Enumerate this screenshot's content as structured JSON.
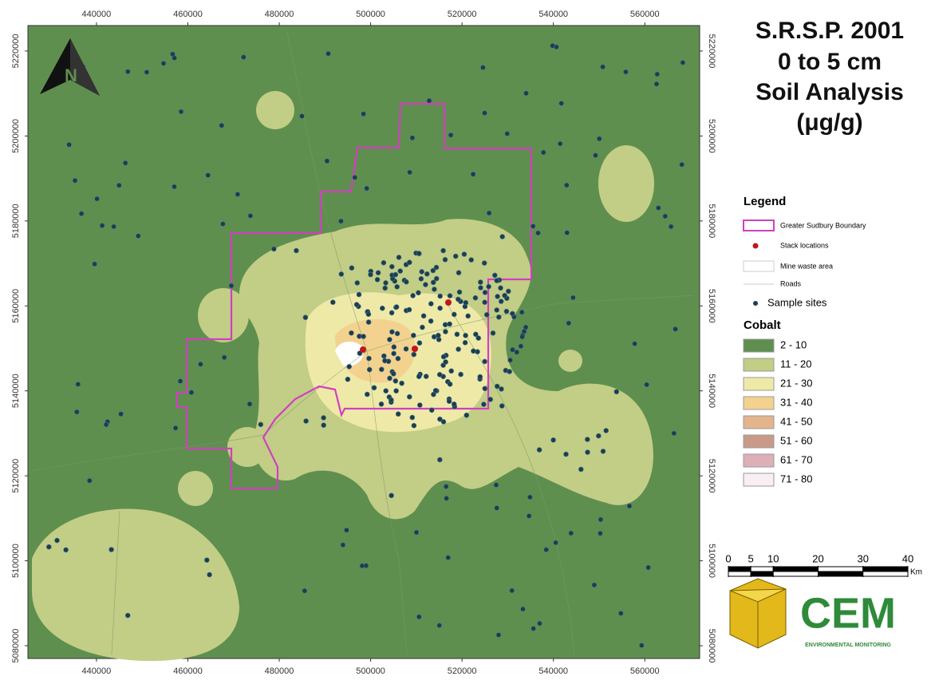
{
  "map": {
    "title": [
      "S.R.S.P. 2001",
      "0 to 5 cm",
      "Soil Analysis",
      "(μg/g)"
    ],
    "north": "N",
    "xlim": [
      425000,
      572000
    ],
    "ylim": [
      5077000,
      5226000
    ],
    "xticks": [
      440000,
      460000,
      480000,
      500000,
      520000,
      540000,
      560000
    ],
    "yticks": [
      5080000,
      5100000,
      5120000,
      5140000,
      5160000,
      5180000,
      5200000,
      5220000
    ]
  },
  "legend": {
    "title": "Legend",
    "items": [
      {
        "label": "Greater Sudbury Boundary"
      },
      {
        "label": "Stack locations"
      },
      {
        "label": "Mine waste area"
      },
      {
        "label": "Roads"
      },
      {
        "label": "Sample sites"
      }
    ],
    "cobalt_title": "Cobalt",
    "classes": [
      {
        "label": "2 - 10",
        "color": "#5f8f4e"
      },
      {
        "label": "11 - 20",
        "color": "#c2cd86"
      },
      {
        "label": "21 - 30",
        "color": "#efe9a8"
      },
      {
        "label": "31 - 40",
        "color": "#f3d28f"
      },
      {
        "label": "41 - 50",
        "color": "#e4b58d"
      },
      {
        "label": "51 - 60",
        "color": "#c99a88"
      },
      {
        "label": "61 - 70",
        "color": "#ddb0b7"
      },
      {
        "label": "71 - 80",
        "color": "#f8eef4"
      }
    ]
  },
  "scale_bar": {
    "ticks": [
      0,
      5,
      10,
      20,
      30,
      40
    ],
    "unit": "Km"
  },
  "logo": {
    "name": "CEM",
    "tagline": "ENVIRONMENTAL MONITORING"
  }
}
